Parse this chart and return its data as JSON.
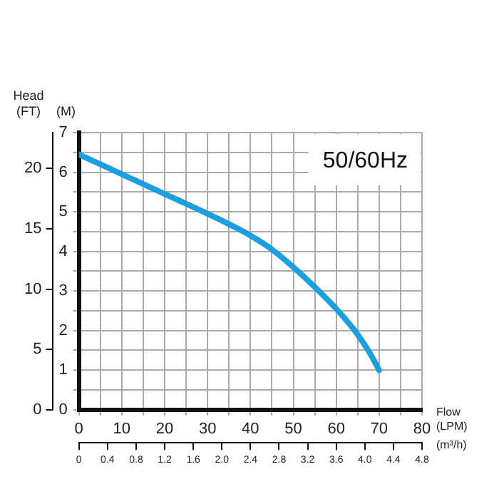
{
  "chart_data": {
    "type": "line",
    "xlabel": "Flow\n(LPM)",
    "x2label": "(m³/h)",
    "ylabel": "(M)",
    "y2label": "Head\n(FT)",
    "annotations": [
      "50/60Hz"
    ],
    "x": [
      0,
      10,
      20,
      30,
      40,
      45,
      50,
      55,
      60,
      65,
      68,
      70
    ],
    "series": [
      {
        "color": "#1a9fe0",
        "values": [
          6.45,
          5.95,
          5.45,
          4.95,
          4.4,
          4.05,
          3.6,
          3.1,
          2.55,
          1.9,
          1.4,
          1.0
        ]
      }
    ],
    "xlim": [
      0,
      80
    ],
    "xticks": [
      0,
      {
        "value": 5,
        "label": null
      },
      10,
      {
        "value": 15,
        "label": null
      },
      20,
      {
        "value": 25,
        "label": null
      },
      30,
      {
        "value": 35,
        "label": null
      },
      40,
      {
        "value": 45,
        "label": null
      },
      50,
      {
        "value": 55,
        "label": null
      },
      60,
      {
        "value": 65,
        "label": null
      },
      70,
      {
        "value": 75,
        "label": null
      },
      80
    ],
    "x2lim": [
      0,
      4.8
    ],
    "x2ticks": [
      0,
      0.4,
      0.8,
      1.2,
      1.6,
      {
        "value": 2,
        "label": "2.0"
      },
      2.4,
      2.8,
      3.2,
      3.6,
      {
        "value": 4,
        "label": "4.0"
      },
      4.4,
      4.8
    ],
    "ylim": [
      0,
      7
    ],
    "yticks": [
      0,
      {
        "value": 0.5,
        "label": null
      },
      1,
      {
        "value": 1.5,
        "label": null
      },
      2,
      {
        "value": 2.5,
        "label": null
      },
      3,
      {
        "value": 3.5,
        "label": null
      },
      4,
      {
        "value": 4.5,
        "label": null
      },
      5,
      {
        "value": 5.5,
        "label": null
      },
      6,
      {
        "value": 6.5,
        "label": null
      },
      7
    ],
    "y2lim": [
      0,
      22.97
    ],
    "y2ticks": [
      0,
      5,
      10,
      15,
      20
    ],
    "grid": true,
    "legend": false,
    "marker": "none",
    "line_style": "solid"
  }
}
